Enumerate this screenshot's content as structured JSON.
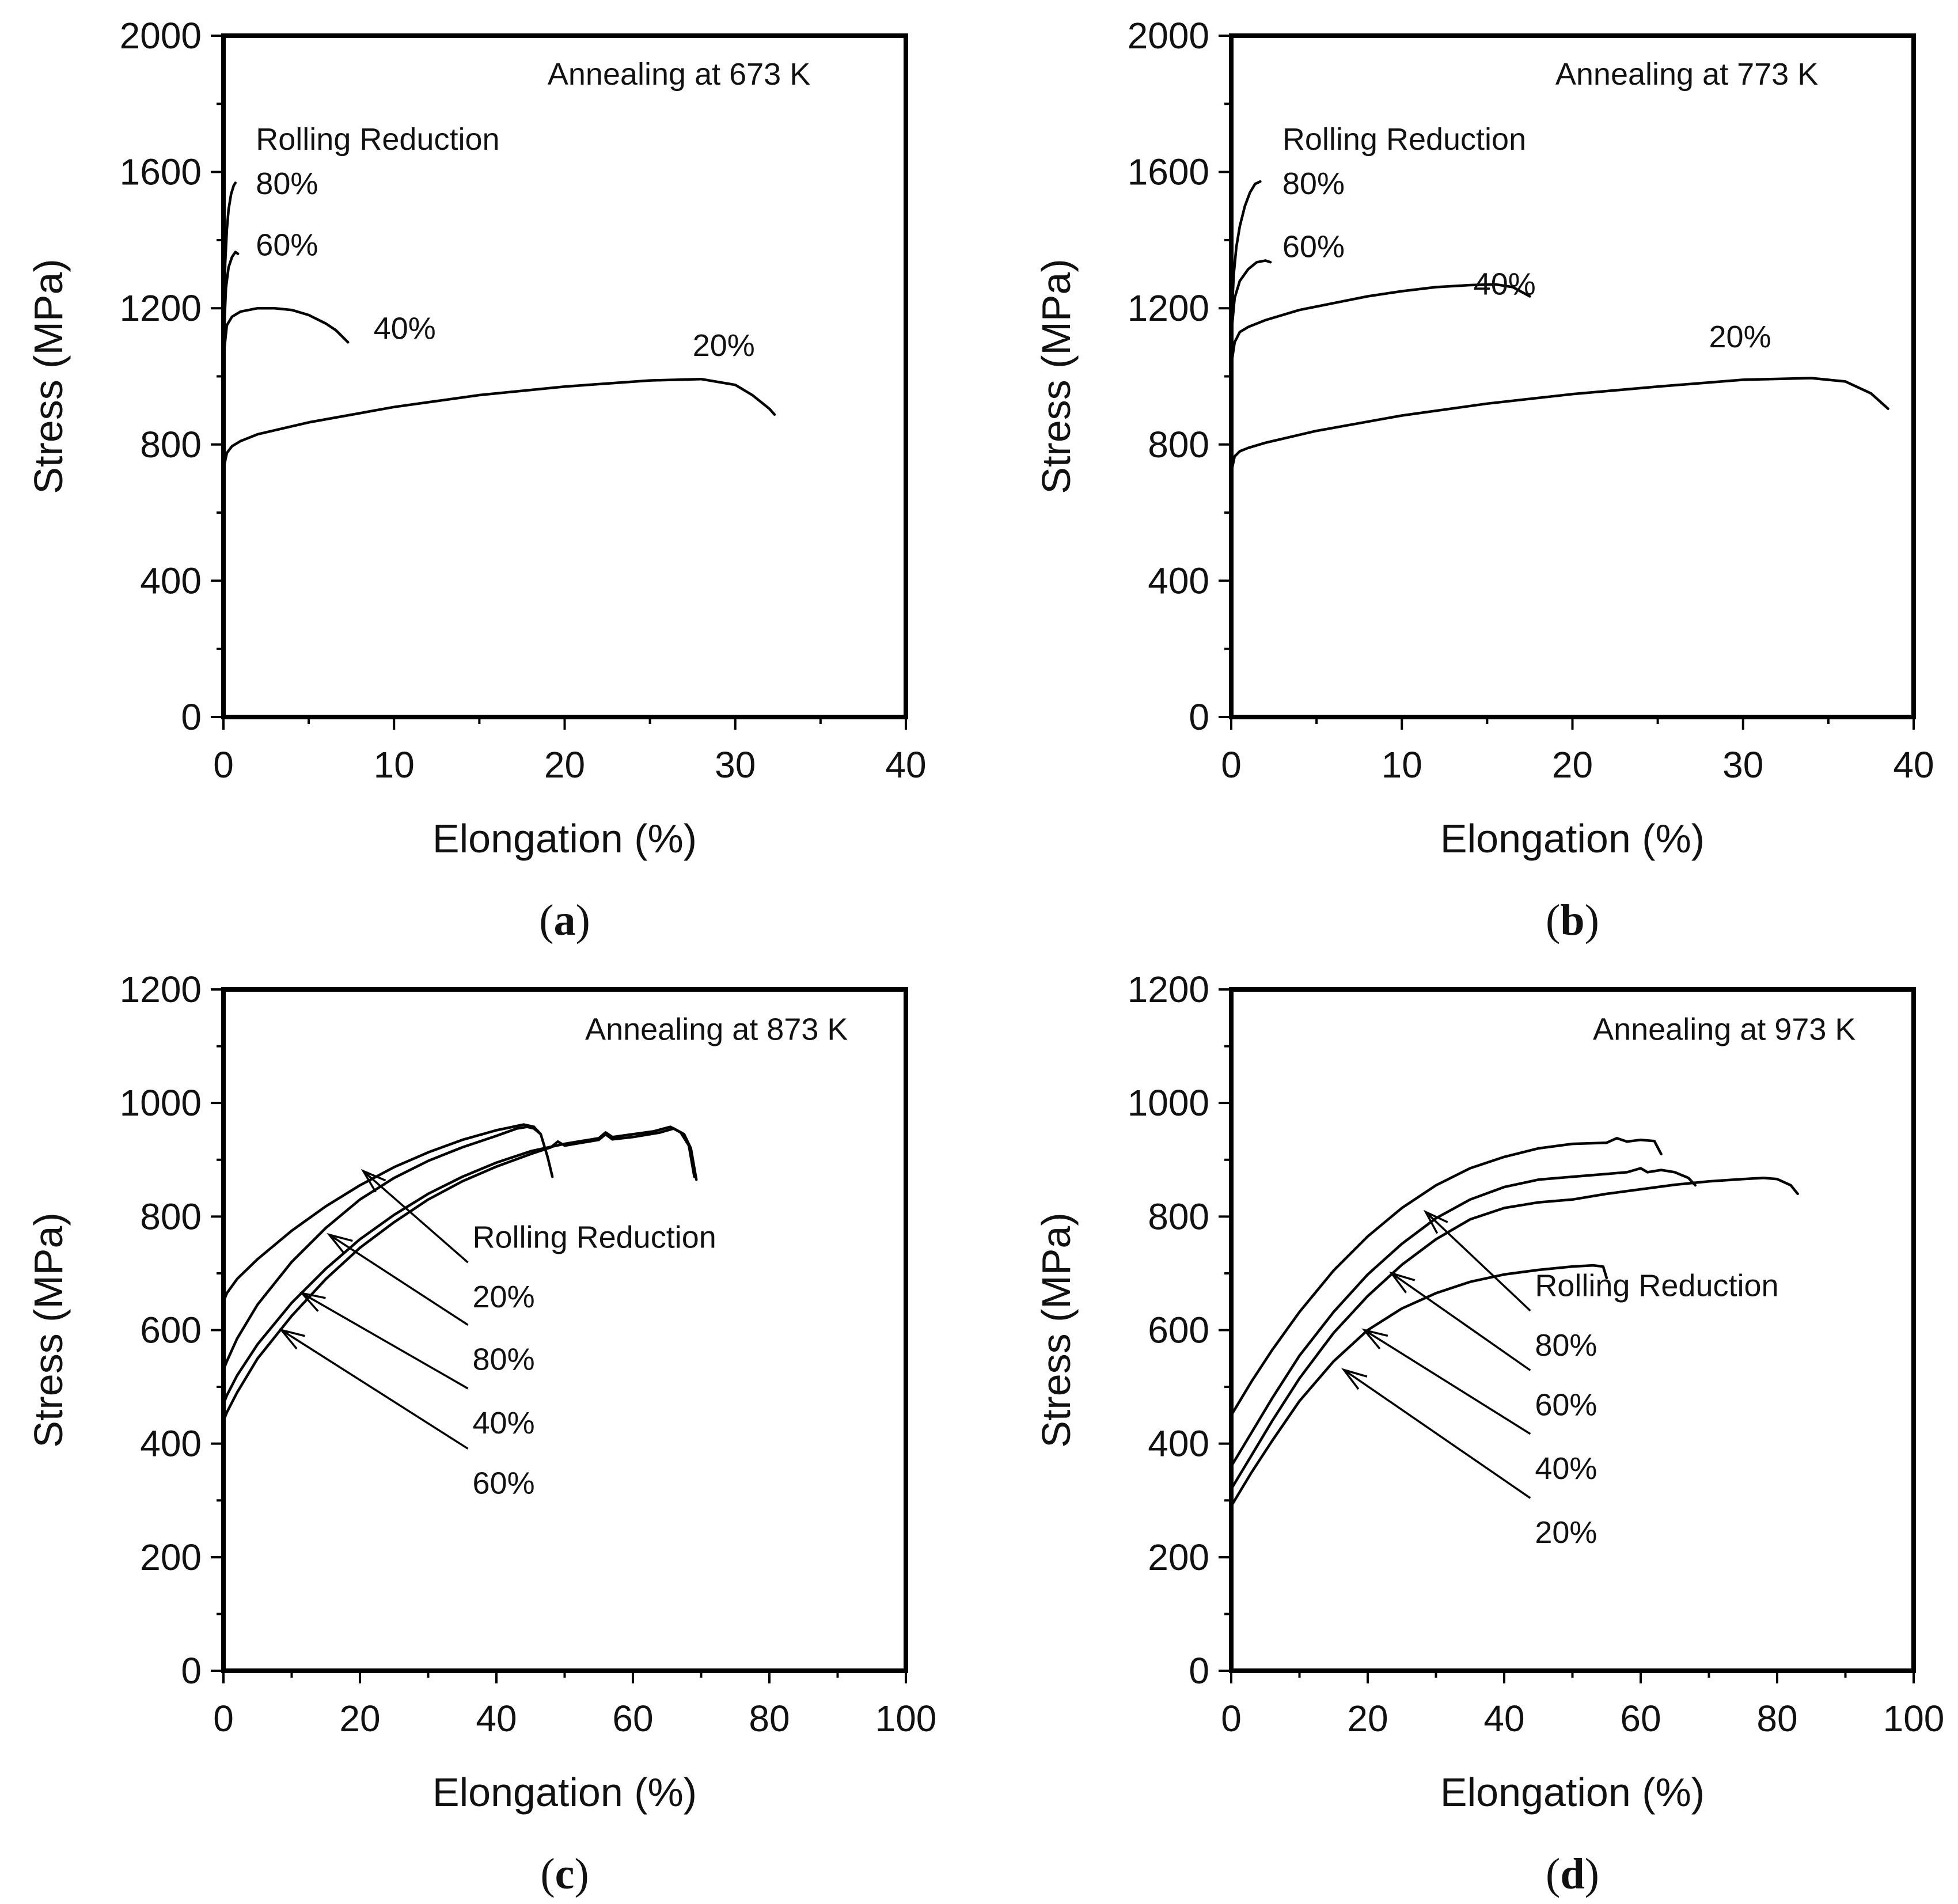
{
  "chart_data": [
    {
      "type": "line",
      "panel": "a",
      "caption": "(a)",
      "caption_letter": "a",
      "annotation": "Annealing at 673 K",
      "legend_title": "Rolling Reduction",
      "xlabel": "Elongation (%)",
      "ylabel": "Stress (MPa)",
      "xlim": [
        0,
        40
      ],
      "ylim": [
        0,
        2000
      ],
      "xticks": [
        0,
        10,
        20,
        30,
        40
      ],
      "xticks_minor": [
        5,
        15,
        25,
        35
      ],
      "yticks": [
        0,
        400,
        800,
        1200,
        1600,
        2000
      ],
      "yticks_minor": [
        200,
        600,
        1000,
        1400,
        1800
      ],
      "series": [
        {
          "name": "80%",
          "label_at": [
            1.9,
            1535
          ],
          "x": [
            0,
            0.05,
            0.1,
            0.2,
            0.3,
            0.45,
            0.6,
            0.7
          ],
          "y": [
            1050,
            1200,
            1330,
            1430,
            1490,
            1535,
            1560,
            1568
          ]
        },
        {
          "name": "60%",
          "label_at": [
            1.9,
            1355
          ],
          "x": [
            0,
            0.05,
            0.15,
            0.3,
            0.5,
            0.7,
            0.85
          ],
          "y": [
            1000,
            1150,
            1260,
            1320,
            1350,
            1365,
            1360
          ]
        },
        {
          "name": "40%",
          "label_at": [
            8.8,
            1110
          ],
          "x": [
            0,
            0.05,
            0.2,
            0.5,
            1,
            2,
            3,
            4,
            5,
            6,
            6.6,
            7.3
          ],
          "y": [
            950,
            1080,
            1150,
            1175,
            1190,
            1200,
            1200,
            1195,
            1180,
            1155,
            1135,
            1100
          ]
        },
        {
          "name": "20%",
          "label_at": [
            27.5,
            1060
          ],
          "x": [
            0,
            0.05,
            0.2,
            0.5,
            1,
            2,
            5,
            10,
            15,
            20,
            25,
            28,
            30,
            31,
            32,
            32.3
          ],
          "y": [
            700,
            740,
            775,
            795,
            810,
            830,
            865,
            910,
            945,
            970,
            988,
            992,
            975,
            945,
            905,
            888
          ]
        }
      ]
    },
    {
      "type": "line",
      "panel": "b",
      "caption": "(b)",
      "caption_letter": "b",
      "annotation": "Annealing at 773 K",
      "legend_title": "Rolling Reduction",
      "xlabel": "Elongation (%)",
      "ylabel": "Stress (MPa)",
      "xlim": [
        0,
        40
      ],
      "ylim": [
        0,
        2000
      ],
      "xticks": [
        0,
        10,
        20,
        30,
        40
      ],
      "xticks_minor": [
        5,
        15,
        25,
        35
      ],
      "yticks": [
        0,
        400,
        800,
        1200,
        1600,
        2000
      ],
      "yticks_minor": [
        200,
        600,
        1000,
        1400,
        1800
      ],
      "series": [
        {
          "name": "80%",
          "label_at": [
            3.0,
            1535
          ],
          "x": [
            0,
            0.05,
            0.15,
            0.3,
            0.5,
            0.8,
            1.1,
            1.4,
            1.7
          ],
          "y": [
            1050,
            1200,
            1300,
            1380,
            1440,
            1500,
            1540,
            1565,
            1572
          ]
        },
        {
          "name": "60%",
          "label_at": [
            3.0,
            1350
          ],
          "x": [
            0,
            0.05,
            0.2,
            0.5,
            1,
            1.5,
            2,
            2.3
          ],
          "y": [
            1000,
            1150,
            1230,
            1280,
            1315,
            1335,
            1340,
            1335
          ]
        },
        {
          "name": "40%",
          "label_at": [
            14.2,
            1240
          ],
          "x": [
            0,
            0.05,
            0.2,
            0.5,
            1,
            2,
            4,
            6,
            8,
            10,
            12,
            14,
            15.5,
            16.5,
            17.5
          ],
          "y": [
            950,
            1050,
            1100,
            1130,
            1145,
            1165,
            1195,
            1215,
            1235,
            1250,
            1262,
            1268,
            1270,
            1262,
            1235
          ]
        },
        {
          "name": "20%",
          "label_at": [
            28.0,
            1085
          ],
          "x": [
            0,
            0.05,
            0.2,
            0.5,
            1,
            2,
            5,
            10,
            15,
            20,
            25,
            30,
            34,
            36,
            37.5,
            38.5
          ],
          "y": [
            680,
            730,
            765,
            780,
            790,
            805,
            840,
            885,
            920,
            948,
            970,
            990,
            995,
            985,
            950,
            905
          ]
        }
      ]
    },
    {
      "type": "line",
      "panel": "c",
      "caption": "(c)",
      "caption_letter": "c",
      "annotation": "Annealing at 873 K",
      "legend_title": "Rolling Reduction",
      "xlabel": "Elongation (%)",
      "ylabel": "Stress (MPa)",
      "xlim": [
        0,
        100
      ],
      "ylim": [
        0,
        1200
      ],
      "xticks": [
        0,
        20,
        40,
        60,
        80,
        100
      ],
      "xticks_minor": [
        10,
        30,
        50,
        70,
        90
      ],
      "yticks": [
        0,
        200,
        400,
        600,
        800,
        1000,
        1200
      ],
      "yticks_minor": [
        100,
        300,
        500,
        700,
        900,
        1100
      ],
      "series": [
        {
          "name": "20%",
          "label_at": [
            36.5,
            640
          ],
          "arrow_tip": [
            20.5,
            880
          ],
          "x": [
            0,
            0.5,
            2,
            5,
            10,
            15,
            20,
            25,
            30,
            35,
            40,
            44,
            45.5,
            46.5,
            47.5,
            48.2
          ],
          "y": [
            650,
            665,
            690,
            725,
            775,
            818,
            855,
            887,
            913,
            935,
            952,
            962,
            958,
            945,
            905,
            870
          ]
        },
        {
          "name": "80%",
          "label_at": [
            36.5,
            530
          ],
          "arrow_tip": [
            15.5,
            768
          ],
          "x": [
            0,
            0.5,
            2,
            5,
            10,
            15,
            20,
            25,
            30,
            35,
            40,
            43,
            44.5,
            45.5,
            46.5
          ],
          "y": [
            530,
            545,
            585,
            645,
            720,
            780,
            830,
            868,
            898,
            922,
            942,
            955,
            958,
            955,
            945
          ]
        },
        {
          "name": "40%",
          "label_at": [
            36.5,
            418
          ],
          "arrow_tip": [
            11.5,
            665
          ],
          "x": [
            0,
            0.5,
            2,
            5,
            10,
            15,
            20,
            25,
            30,
            35,
            40,
            45,
            50,
            55,
            56,
            57,
            60,
            63,
            65.5,
            67,
            68.2,
            69
          ],
          "y": [
            470,
            485,
            520,
            575,
            648,
            708,
            760,
            803,
            840,
            870,
            895,
            915,
            928,
            938,
            948,
            940,
            945,
            950,
            958,
            948,
            925,
            870
          ]
        },
        {
          "name": "60%",
          "label_at": [
            36.5,
            312
          ],
          "arrow_tip": [
            8.5,
            600
          ],
          "x": [
            0,
            0.5,
            2,
            5,
            10,
            15,
            20,
            25,
            30,
            35,
            40,
            45,
            48,
            49,
            50,
            55,
            56,
            57,
            60,
            64,
            66,
            67.5,
            68.5,
            69.3
          ],
          "y": [
            440,
            455,
            490,
            550,
            625,
            690,
            745,
            790,
            830,
            862,
            888,
            910,
            922,
            932,
            925,
            935,
            945,
            936,
            940,
            948,
            955,
            945,
            920,
            865
          ]
        }
      ]
    },
    {
      "type": "line",
      "panel": "d",
      "caption": "(d)",
      "caption_letter": "d",
      "annotation": "Annealing at 973 K",
      "legend_title": "Rolling Reduction",
      "xlabel": "Elongation (%)",
      "ylabel": "Stress (MPa)",
      "xlim": [
        0,
        100
      ],
      "ylim": [
        0,
        1200
      ],
      "xticks": [
        0,
        20,
        40,
        60,
        80,
        100
      ],
      "xticks_minor": [
        10,
        30,
        50,
        70,
        90
      ],
      "yticks": [
        0,
        200,
        400,
        600,
        800,
        1000,
        1200
      ],
      "yticks_minor": [
        100,
        300,
        500,
        700,
        900,
        1100
      ],
      "series": [
        {
          "name": "80%",
          "label_at": [
            44.5,
            555
          ],
          "arrow_tip": [
            28.5,
            808
          ],
          "x": [
            0,
            1,
            3,
            6,
            10,
            15,
            20,
            25,
            30,
            35,
            40,
            45,
            50,
            55,
            56.5,
            58,
            60,
            62,
            63
          ],
          "y": [
            450,
            470,
            510,
            565,
            632,
            705,
            765,
            815,
            855,
            885,
            905,
            920,
            928,
            930,
            938,
            932,
            935,
            933,
            910
          ]
        },
        {
          "name": "60%",
          "label_at": [
            44.5,
            450
          ],
          "arrow_tip": [
            23.5,
            700
          ],
          "x": [
            0,
            1,
            3,
            6,
            10,
            15,
            20,
            25,
            30,
            35,
            40,
            45,
            50,
            55,
            58,
            60,
            61,
            63,
            65,
            67,
            68
          ],
          "y": [
            360,
            380,
            420,
            480,
            555,
            632,
            698,
            752,
            797,
            830,
            852,
            865,
            870,
            875,
            878,
            885,
            878,
            882,
            878,
            868,
            855
          ]
        },
        {
          "name": "40%",
          "label_at": [
            44.5,
            338
          ],
          "arrow_tip": [
            19.5,
            600
          ],
          "x": [
            0,
            1,
            3,
            6,
            10,
            15,
            20,
            25,
            30,
            35,
            40,
            45,
            50,
            55,
            60,
            65,
            70,
            75,
            78,
            80,
            82,
            83
          ],
          "y": [
            320,
            340,
            380,
            440,
            515,
            595,
            660,
            715,
            760,
            795,
            815,
            825,
            830,
            840,
            848,
            856,
            862,
            866,
            868,
            866,
            855,
            840
          ]
        },
        {
          "name": "20%",
          "label_at": [
            44.5,
            225
          ],
          "arrow_tip": [
            16.5,
            530
          ],
          "x": [
            0,
            1,
            3,
            6,
            10,
            15,
            20,
            25,
            30,
            35,
            40,
            45,
            50,
            53,
            54.5,
            55
          ],
          "y": [
            290,
            310,
            350,
            405,
            475,
            545,
            600,
            638,
            665,
            685,
            698,
            706,
            712,
            714,
            712,
            692
          ]
        }
      ]
    }
  ]
}
